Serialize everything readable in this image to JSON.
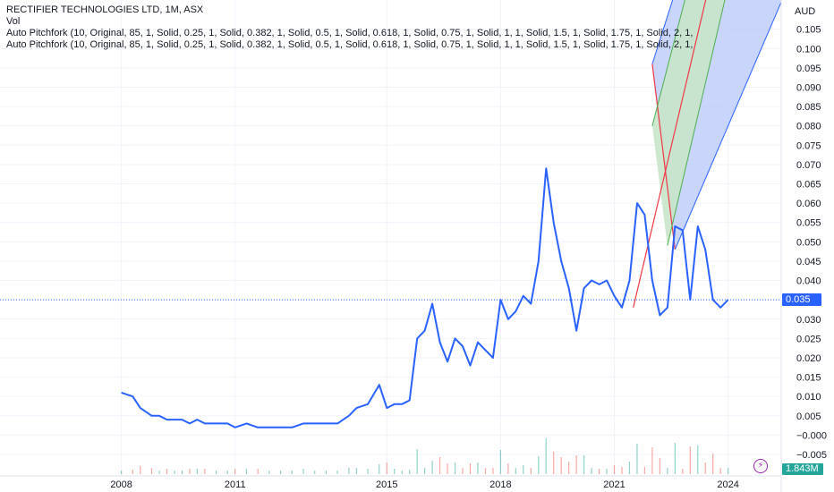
{
  "legend": {
    "title": "RECTIFIER TECHNOLOGIES LTD, 1M, ASX",
    "vol": "Vol",
    "pitchfork_1": "Auto Pitchfork (10, Original, 85, 1, Solid, 0.25, 1, Solid, 0.382, 1, Solid, 0.5, 1, Solid, 0.618, 1, Solid, 0.75, 1, Solid, 1, 1, Solid, 1.5, 1, Solid, 1.75, 1, Solid, 2, 1,",
    "pitchfork_2": "Auto Pitchfork (10, Original, 85, 1, Solid, 0.25, 1, Solid, 0.382, 1, Solid, 0.5, 1, Solid, 0.618, 1, Solid, 0.75, 1, Solid, 1, 1, Solid, 1.5, 1, Solid, 1.75, 1, Solid, 2, 1,"
  },
  "price_axis": {
    "currency": "AUD",
    "current_price": "0.035",
    "volume_label": "1.843M"
  },
  "colors": {
    "price_line": "#2962ff",
    "pitchfork_median": "#f23645",
    "pitchfork_inner_fill": "#c8e6c9",
    "pitchfork_outer_fill": "#bbcbfa",
    "volume_up": "#26a69a",
    "volume_down": "#ef5350",
    "grid": "#f0f3fa"
  },
  "chart_data": {
    "type": "line",
    "title": "RECTIFIER TECHNOLOGIES LTD, 1M, ASX",
    "xlabel": "",
    "ylabel": "AUD",
    "x_ticks": [
      "2008",
      "2011",
      "2015",
      "2018",
      "2021",
      "2024"
    ],
    "y_ticks": [
      "0.105",
      "0.100",
      "0.095",
      "0.090",
      "0.085",
      "0.080",
      "0.075",
      "0.070",
      "0.065",
      "0.060",
      "0.055",
      "0.050",
      "0.045",
      "0.040",
      "0.035",
      "0.030",
      "0.025",
      "0.020",
      "0.015",
      "0.010",
      "0.005",
      "−0.000",
      "−0.005"
    ],
    "ylim": [
      -0.005,
      0.107
    ],
    "xlim": [
      2004.8,
      2025.4
    ],
    "grid": true,
    "series": [
      {
        "values_x": [
          2008.0,
          2008.3,
          2008.5,
          2008.8,
          2009.0,
          2009.2,
          2009.4,
          2009.6,
          2009.8,
          2010.0,
          2010.2,
          2010.5,
          2010.8,
          2011.0,
          2011.3,
          2011.6,
          2011.9,
          2012.2,
          2012.5,
          2012.8,
          2013.1,
          2013.4,
          2013.7,
          2014.0,
          2014.2,
          2014.5,
          2014.8,
          2015.0,
          2015.2,
          2015.4,
          2015.6,
          2015.8,
          2016.0,
          2016.2,
          2016.4,
          2016.6,
          2016.8,
          2017.0,
          2017.2,
          2017.4,
          2017.6,
          2017.8,
          2018.0,
          2018.2,
          2018.4,
          2018.6,
          2018.8,
          2019.0,
          2019.2,
          2019.4,
          2019.6,
          2019.8,
          2020.0,
          2020.2,
          2020.4,
          2020.6,
          2020.8,
          2021.0,
          2021.2,
          2021.4,
          2021.6,
          2021.8,
          2022.0,
          2022.2,
          2022.4,
          2022.6,
          2022.8,
          2023.0,
          2023.2,
          2023.4,
          2023.6,
          2023.8,
          2024.0
        ],
        "values": [
          0.011,
          0.01,
          0.007,
          0.005,
          0.005,
          0.004,
          0.004,
          0.004,
          0.003,
          0.004,
          0.003,
          0.003,
          0.003,
          0.002,
          0.003,
          0.002,
          0.002,
          0.002,
          0.002,
          0.003,
          0.003,
          0.003,
          0.003,
          0.005,
          0.007,
          0.008,
          0.013,
          0.007,
          0.008,
          0.008,
          0.009,
          0.025,
          0.027,
          0.034,
          0.024,
          0.019,
          0.025,
          0.023,
          0.018,
          0.024,
          0.022,
          0.02,
          0.035,
          0.03,
          0.032,
          0.036,
          0.034,
          0.045,
          0.069,
          0.055,
          0.045,
          0.038,
          0.027,
          0.038,
          0.04,
          0.039,
          0.04,
          0.036,
          0.033,
          0.04,
          0.06,
          0.057,
          0.04,
          0.031,
          0.033,
          0.054,
          0.053,
          0.035,
          0.054,
          0.048,
          0.035,
          0.033,
          0.035
        ]
      }
    ],
    "volume": {
      "label": "Vol",
      "current": "1.843M"
    }
  }
}
